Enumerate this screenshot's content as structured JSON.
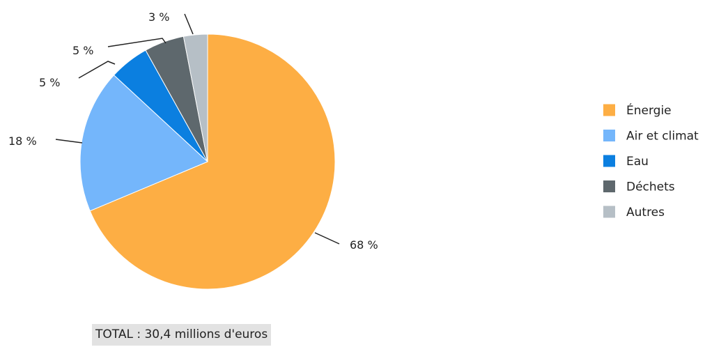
{
  "chart_data": {
    "type": "pie",
    "categories": [
      "Énergie",
      "Air et climat",
      "Eau",
      "Déchets",
      "Autres"
    ],
    "values": [
      68,
      18,
      5,
      5,
      3
    ],
    "labels": [
      "68 %",
      "18 %",
      "5 %",
      "5 %",
      "3 %"
    ],
    "colors": [
      "#fdae44",
      "#74b6fb",
      "#0b7fe0",
      "#5e686d",
      "#b6bfc6"
    ],
    "legend_position": "right",
    "total_label": "TOTAL : 30,4 millions d'euros"
  }
}
